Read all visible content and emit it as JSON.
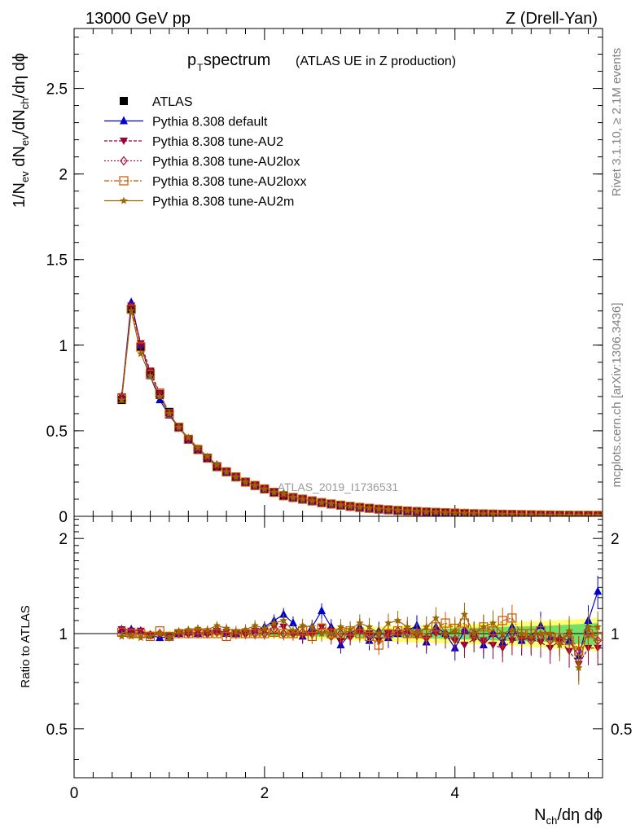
{
  "header": {
    "energy_label": "13000 GeV pp",
    "process_label": "Z (Drell-Yan)"
  },
  "side_labels": {
    "rivet": "Rivet 3.1.10, ≥ 2.1M events",
    "mcplots": "mcplots.cern.ch [arXiv:1306.3436]"
  },
  "chart_data": [
    {
      "type": "line",
      "title_main": "p",
      "title_sub": "T",
      "title_word": " spectrum",
      "title_note": "(ATLAS UE in Z production)",
      "analysis_watermark": "ATLAS_2019_I1736531",
      "ylabel": "1/N_ev dN_ev/dN_ch/dη dϕ",
      "ylim": [
        0,
        2.85
      ],
      "xlim": [
        0,
        5.55
      ],
      "yticks": [
        0,
        0.5,
        1,
        1.5,
        2,
        2.5
      ],
      "ytick_labels": [
        "0",
        "0.5",
        "1",
        "1.5",
        "2",
        "2.5"
      ],
      "legend_position": "top-left",
      "x": [
        0.5,
        0.6,
        0.7,
        0.8,
        0.9,
        1.0,
        1.1,
        1.2,
        1.3,
        1.4,
        1.5,
        1.6,
        1.7,
        1.8,
        1.9,
        2.0,
        2.1,
        2.2,
        2.3,
        2.4,
        2.5,
        2.6,
        2.7,
        2.8,
        2.9,
        3.0,
        3.1,
        3.2,
        3.3,
        3.4,
        3.5,
        3.6,
        3.7,
        3.8,
        3.9,
        4.0,
        4.1,
        4.2,
        4.3,
        4.4,
        4.5,
        4.6,
        4.7,
        4.8,
        4.9,
        5.0,
        5.1,
        5.2,
        5.3,
        5.4,
        5.5
      ],
      "series": [
        {
          "name": "ATLAS",
          "color": "#000000",
          "marker": "square-filled",
          "values": [
            0.68,
            1.21,
            0.99,
            0.84,
            0.71,
            0.61,
            0.52,
            0.45,
            0.39,
            0.34,
            0.29,
            0.26,
            0.23,
            0.2,
            0.18,
            0.16,
            0.14,
            0.12,
            0.11,
            0.1,
            0.09,
            0.08,
            0.07,
            0.065,
            0.058,
            0.052,
            0.047,
            0.042,
            0.038,
            0.034,
            0.031,
            0.028,
            0.025,
            0.023,
            0.021,
            0.019,
            0.017,
            0.015,
            0.014,
            0.013,
            0.012,
            0.011,
            0.01,
            0.009,
            0.008,
            0.0075,
            0.007,
            0.0065,
            0.006,
            0.0055,
            0.005
          ]
        },
        {
          "name": "Pythia 8.308 default",
          "color": "#0000cc",
          "marker": "triangle-up-filled",
          "values": [
            0.7,
            1.25,
            1.0,
            0.82,
            0.68,
            0.59,
            0.52,
            0.45,
            0.39,
            0.34,
            0.3,
            0.26,
            0.23,
            0.2,
            0.18,
            0.16,
            0.14,
            0.13,
            0.11,
            0.1,
            0.09,
            0.08,
            0.071,
            0.064,
            0.057,
            0.051,
            0.046,
            0.041,
            0.037,
            0.034,
            0.03,
            0.027,
            0.025,
            0.022,
            0.02,
            0.018,
            0.016,
            0.015,
            0.013,
            0.012,
            0.011,
            0.01,
            0.009,
            0.0085,
            0.0075,
            0.007,
            0.0062,
            0.006,
            0.0058,
            0.006,
            0.0068
          ]
        },
        {
          "name": "Pythia 8.308 tune-AU2",
          "color": "#990033",
          "marker": "triangle-down-filled",
          "values": [
            0.7,
            1.23,
            1.01,
            0.85,
            0.72,
            0.6,
            0.52,
            0.45,
            0.39,
            0.34,
            0.29,
            0.26,
            0.23,
            0.2,
            0.18,
            0.16,
            0.14,
            0.12,
            0.11,
            0.1,
            0.09,
            0.08,
            0.072,
            0.064,
            0.057,
            0.051,
            0.046,
            0.041,
            0.037,
            0.033,
            0.03,
            0.027,
            0.024,
            0.022,
            0.02,
            0.018,
            0.016,
            0.015,
            0.013,
            0.012,
            0.011,
            0.01,
            0.009,
            0.0085,
            0.0075,
            0.007,
            0.0062,
            0.0058,
            0.0055,
            0.005,
            0.0045
          ]
        },
        {
          "name": "Pythia 8.308 tune-AU2lox",
          "color": "#aa1144",
          "marker": "diamond-open",
          "values": [
            0.69,
            1.22,
            1.0,
            0.84,
            0.71,
            0.6,
            0.52,
            0.45,
            0.39,
            0.34,
            0.29,
            0.26,
            0.23,
            0.2,
            0.18,
            0.16,
            0.14,
            0.12,
            0.11,
            0.1,
            0.09,
            0.08,
            0.071,
            0.064,
            0.057,
            0.052,
            0.046,
            0.042,
            0.038,
            0.034,
            0.031,
            0.028,
            0.025,
            0.022,
            0.021,
            0.019,
            0.017,
            0.015,
            0.014,
            0.012,
            0.011,
            0.01,
            0.0095,
            0.0085,
            0.0078,
            0.007,
            0.0062,
            0.006,
            0.0056,
            0.0052,
            0.0048
          ]
        },
        {
          "name": "Pythia 8.308 tune-AU2loxx",
          "color": "#cc5500",
          "marker": "square-open",
          "values": [
            0.69,
            1.21,
            0.99,
            0.83,
            0.72,
            0.6,
            0.52,
            0.45,
            0.39,
            0.34,
            0.29,
            0.26,
            0.23,
            0.2,
            0.18,
            0.16,
            0.14,
            0.12,
            0.11,
            0.1,
            0.09,
            0.08,
            0.072,
            0.065,
            0.058,
            0.052,
            0.047,
            0.042,
            0.038,
            0.034,
            0.031,
            0.028,
            0.025,
            0.023,
            0.021,
            0.019,
            0.017,
            0.015,
            0.014,
            0.013,
            0.012,
            0.011,
            0.0098,
            0.009,
            0.008,
            0.0074,
            0.0065,
            0.0062,
            0.0058,
            0.0056,
            0.0052
          ]
        },
        {
          "name": "Pythia 8.308 tune-AU2m",
          "color": "#996600",
          "marker": "star-filled",
          "values": [
            0.68,
            1.2,
            0.95,
            0.82,
            0.7,
            0.6,
            0.52,
            0.46,
            0.4,
            0.35,
            0.3,
            0.26,
            0.23,
            0.2,
            0.18,
            0.16,
            0.14,
            0.13,
            0.11,
            0.1,
            0.09,
            0.08,
            0.073,
            0.066,
            0.059,
            0.053,
            0.048,
            0.043,
            0.039,
            0.035,
            0.032,
            0.029,
            0.026,
            0.024,
            0.021,
            0.019,
            0.018,
            0.016,
            0.014,
            0.013,
            0.012,
            0.011,
            0.0098,
            0.009,
            0.0082,
            0.0074,
            0.0068,
            0.006,
            0.0058,
            0.0055,
            0.005
          ]
        }
      ]
    },
    {
      "type": "line",
      "ylabel": "Ratio to ATLAS",
      "xlabel": "N_ch/dη dϕ",
      "ylim": [
        0.35,
        2.35
      ],
      "xlim": [
        0,
        5.55
      ],
      "yticks": [
        0.5,
        1,
        2
      ],
      "ytick_labels": [
        "0.5",
        "1",
        "2"
      ],
      "xticks": [
        0,
        2,
        4
      ],
      "xtick_labels": [
        "0",
        "2",
        "4"
      ],
      "band": {
        "stat_color": "#66dd66",
        "sys_color": "#ffff66",
        "x": [
          0.5,
          1.0,
          1.5,
          2.0,
          2.5,
          3.0,
          3.5,
          4.0,
          4.5,
          5.0,
          5.5
        ],
        "stat_half_width": [
          0.01,
          0.01,
          0.012,
          0.015,
          0.02,
          0.025,
          0.03,
          0.04,
          0.05,
          0.06,
          0.08
        ],
        "sys_half_width": [
          0.02,
          0.02,
          0.025,
          0.03,
          0.04,
          0.05,
          0.06,
          0.07,
          0.08,
          0.1,
          0.12
        ]
      },
      "series": [
        {
          "name": "Pythia 8.308 default",
          "color": "#0000cc",
          "marker": "triangle-up-filled",
          "values": [
            1.03,
            1.03,
            1.02,
            0.99,
            0.97,
            0.98,
            1.0,
            1.01,
            1.0,
            1.01,
            1.03,
            1.0,
            1.0,
            1.02,
            1.02,
            1.05,
            1.1,
            1.15,
            1.08,
            0.98,
            1.05,
            1.18,
            1.05,
            0.92,
            1.0,
            1.05,
            0.95,
            1.02,
            0.97,
            1.0,
            1.02,
            1.06,
            0.94,
            1.05,
            1.0,
            0.9,
            1.02,
            1.0,
            0.92,
            1.0,
            0.94,
            1.05,
            0.95,
            0.98,
            1.06,
            0.97,
            0.97,
            0.95,
            0.85,
            1.1,
            1.36
          ]
        },
        {
          "name": "Pythia 8.308 tune-AU2",
          "color": "#990033",
          "marker": "triangle-down-filled",
          "values": [
            1.03,
            1.02,
            1.02,
            0.99,
            0.99,
            0.97,
            1.0,
            1.0,
            1.01,
            1.0,
            1.02,
            1.01,
            1.0,
            1.0,
            1.02,
            1.02,
            1.05,
            1.05,
            1.0,
            0.98,
            1.0,
            1.05,
            1.02,
            0.95,
            0.98,
            1.02,
            1.0,
            0.95,
            1.0,
            1.0,
            1.02,
            0.98,
            0.96,
            1.0,
            0.98,
            0.95,
            0.92,
            0.96,
            0.95,
            0.92,
            0.9,
            0.95,
            0.96,
            0.96,
            0.94,
            0.9,
            0.95,
            0.88,
            0.8,
            0.9,
            0.9
          ]
        },
        {
          "name": "Pythia 8.308 tune-AU2lox",
          "color": "#aa1144",
          "marker": "diamond-open",
          "values": [
            1.02,
            1.0,
            1.0,
            0.99,
            1.0,
            0.98,
            1.0,
            1.0,
            1.0,
            1.0,
            1.01,
            1.0,
            1.0,
            1.0,
            1.0,
            1.0,
            1.03,
            1.0,
            1.0,
            1.01,
            1.0,
            1.02,
            0.98,
            1.0,
            0.98,
            1.02,
            0.99,
            1.0,
            1.0,
            1.02,
            1.0,
            1.0,
            0.97,
            1.02,
            1.0,
            0.96,
            1.02,
            1.0,
            0.95,
            1.0,
            0.96,
            1.0,
            0.97,
            0.95,
            0.98,
            0.95,
            0.96,
            1.0,
            0.88,
            1.0,
            0.95
          ]
        },
        {
          "name": "Pythia 8.308 tune-AU2loxx",
          "color": "#cc5500",
          "marker": "square-open",
          "values": [
            1.01,
            1.0,
            1.0,
            0.98,
            1.02,
            0.98,
            1.0,
            1.0,
            1.0,
            1.0,
            1.0,
            0.98,
            1.0,
            1.0,
            1.0,
            1.0,
            1.01,
            1.0,
            1.0,
            1.02,
            0.98,
            1.04,
            1.0,
            1.0,
            1.02,
            1.0,
            0.98,
            0.92,
            1.0,
            1.02,
            1.0,
            1.0,
            1.0,
            1.05,
            1.08,
            1.04,
            1.08,
            1.0,
            1.05,
            1.02,
            1.1,
            1.12,
            1.0,
            1.0,
            1.02,
            0.98,
            0.97,
            0.95,
            0.88,
            1.0,
            0.98
          ]
        },
        {
          "name": "Pythia 8.308 tune-AU2m",
          "color": "#996600",
          "marker": "star-filled",
          "values": [
            0.98,
            0.98,
            0.97,
            0.98,
            1.0,
            0.97,
            1.02,
            1.03,
            1.04,
            1.03,
            1.06,
            1.04,
            1.02,
            1.03,
            1.06,
            1.04,
            1.08,
            1.1,
            1.02,
            1.06,
            1.05,
            1.0,
            1.0,
            1.05,
            1.03,
            1.08,
            1.05,
            1.0,
            1.08,
            1.1,
            1.05,
            1.0,
            1.05,
            1.12,
            1.0,
            1.02,
            1.15,
            1.0,
            1.05,
            1.08,
            1.0,
            1.03,
            1.0,
            0.98,
            1.0,
            1.0,
            0.92,
            1.02,
            0.78,
            1.05,
            1.05
          ]
        }
      ]
    }
  ]
}
